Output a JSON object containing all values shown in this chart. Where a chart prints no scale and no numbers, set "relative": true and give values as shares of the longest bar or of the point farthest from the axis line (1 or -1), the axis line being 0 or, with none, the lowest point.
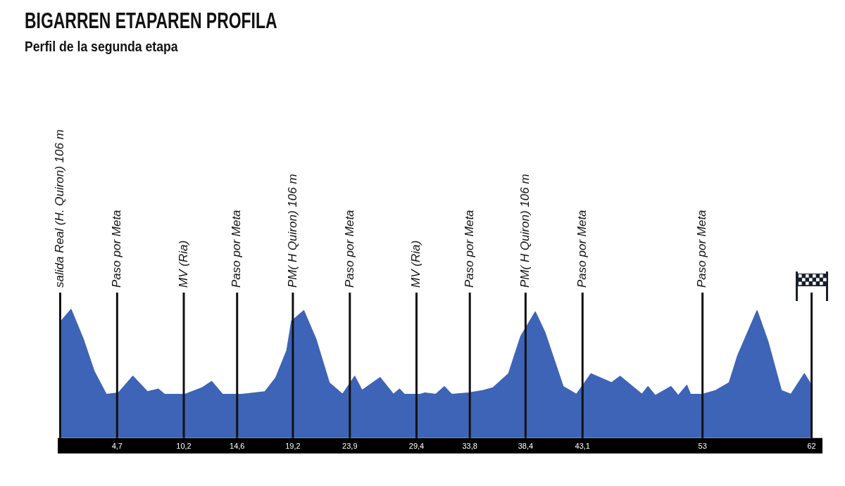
{
  "chart_data": {
    "type": "area",
    "title": "BIGARREN ETAPAREN PROFILA",
    "subtitle": "Perfil de la segunda etapa",
    "relative": true,
    "color": "#3d64b6",
    "x": [
      0,
      0.9,
      1.9,
      2.8,
      3.8,
      4.8,
      6.0,
      7.2,
      8.1,
      8.6,
      10.3,
      11.7,
      12.5,
      13.4,
      15.0,
      16.9,
      17.8,
      18.7,
      19.1,
      20.1,
      21.1,
      22.2,
      23.3,
      24.3,
      24.9,
      26.4,
      27.5,
      28.0,
      28.4,
      29.7,
      30.1,
      31.0,
      31.7,
      32.3,
      33.7,
      34.9,
      35.7,
      37.0,
      38.0,
      39.2,
      40.0,
      41.5,
      42.6,
      43.8,
      45.5,
      46.2,
      48.0,
      48.5,
      49.1,
      50.4,
      51.0,
      51.7,
      52.0,
      53.0,
      54.1,
      55.2,
      55.9,
      57.5,
      58.4,
      59.5,
      60.3,
      61.4,
      62
    ],
    "values": [
      0.9,
      1,
      0.77,
      0.52,
      0.34,
      0.35,
      0.48,
      0.36,
      0.38,
      0.34,
      0.34,
      0.39,
      0.44,
      0.34,
      0.34,
      0.36,
      0.47,
      0.68,
      0.91,
      0.99,
      0.77,
      0.43,
      0.34,
      0.48,
      0.37,
      0.47,
      0.34,
      0.38,
      0.34,
      0.34,
      0.35,
      0.34,
      0.4,
      0.34,
      0.35,
      0.37,
      0.39,
      0.5,
      0.79,
      0.98,
      0.82,
      0.4,
      0.34,
      0.5,
      0.43,
      0.48,
      0.34,
      0.4,
      0.33,
      0.4,
      0.33,
      0.41,
      0.34,
      0.34,
      0.37,
      0.43,
      0.64,
      0.99,
      0.75,
      0.37,
      0.34,
      0.5,
      0.41
    ],
    "xlim": [
      -0.2,
      62.2
    ],
    "xticks": [
      {
        "value": 4.7,
        "label": "4,7"
      },
      {
        "value": 10.2,
        "label": "10,2"
      },
      {
        "value": 14.6,
        "label": "14,6"
      },
      {
        "value": 19.2,
        "label": "19,2"
      },
      {
        "value": 23.9,
        "label": "23,9"
      },
      {
        "value": 29.4,
        "label": "29,4"
      },
      {
        "value": 33.8,
        "label": "33,8"
      },
      {
        "value": 38.4,
        "label": "38,4"
      },
      {
        "value": 43.1,
        "label": "43,1"
      },
      53,
      62
    ],
    "ref_lines": [
      {
        "axis": "x",
        "value": 0,
        "label": "salida Real (H. Quiron) 106 m",
        "color": "#111111"
      },
      {
        "axis": "x",
        "value": 4.7,
        "label": "Paso por Meta",
        "color": "#111111"
      },
      {
        "axis": "x",
        "value": 10.2,
        "label": "MV (Ria)",
        "color": "#111111"
      },
      {
        "axis": "x",
        "value": 14.6,
        "label": "Paso por Meta",
        "color": "#111111"
      },
      {
        "axis": "x",
        "value": 19.2,
        "label": "PM( H Quiron) 106 m",
        "color": "#111111"
      },
      {
        "axis": "x",
        "value": 23.9,
        "label": "Paso por Meta",
        "color": "#111111"
      },
      {
        "axis": "x",
        "value": 29.4,
        "label": "MV (Ria)",
        "color": "#111111"
      },
      {
        "axis": "x",
        "value": 33.8,
        "label": "Paso por Meta",
        "color": "#111111"
      },
      {
        "axis": "x",
        "value": 38.4,
        "label": "PM( H Quiron) 106 m",
        "color": "#111111"
      },
      {
        "axis": "x",
        "value": 43.1,
        "label": "Paso por Meta",
        "color": "#111111"
      },
      {
        "axis": "x",
        "value": 53,
        "label": "Paso por Meta",
        "color": "#111111"
      },
      {
        "axis": "x",
        "value": 62,
        "color": "#111111"
      }
    ]
  }
}
